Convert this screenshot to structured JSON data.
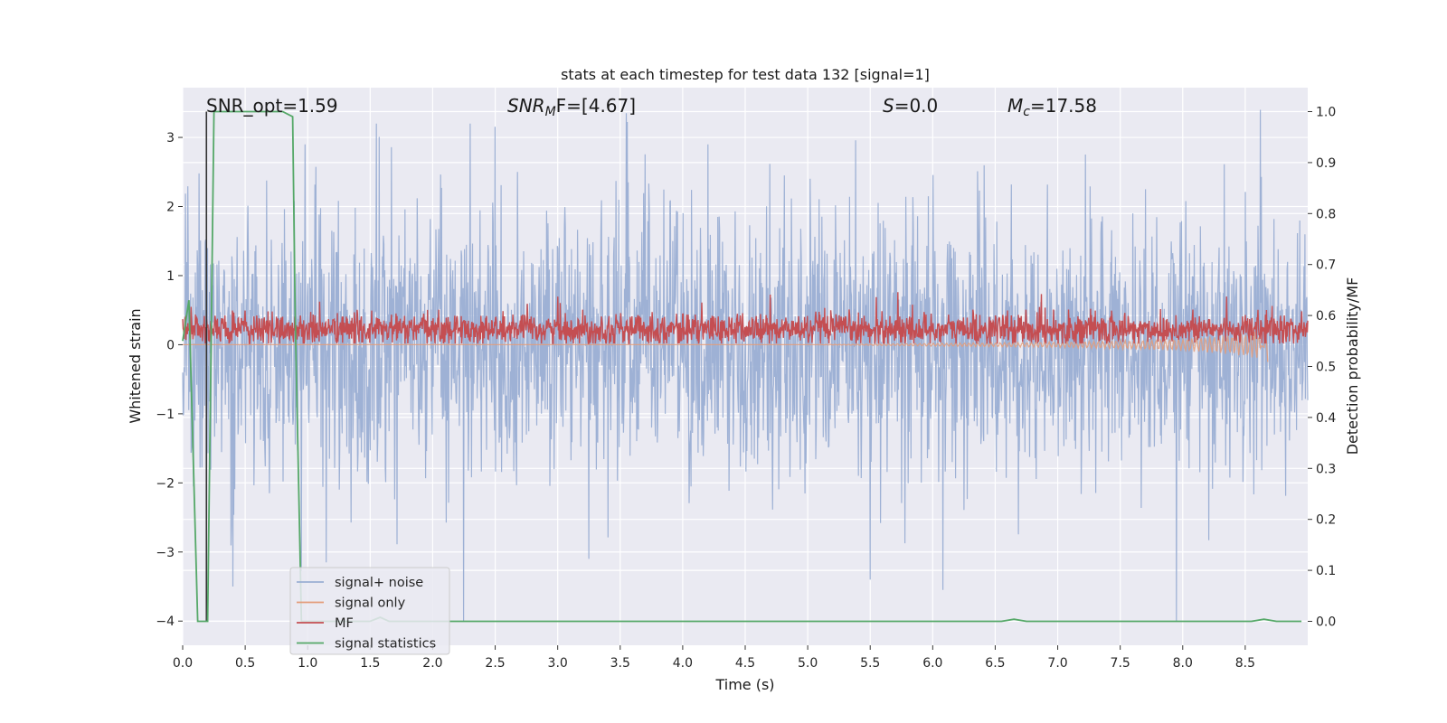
{
  "chart_data": {
    "type": "line",
    "title": "stats at each timestep for test data 132 [signal=1]",
    "xlabel": "Time (s)",
    "ylabel": "Whitened strain",
    "y2label": "Detection probability/MF",
    "xlim": [
      0.0,
      9.0
    ],
    "ylim": [
      -4.35,
      3.72
    ],
    "y2lim": [
      -0.047,
      1.047
    ],
    "grid": true,
    "legend_position": "lower-left",
    "x_ticks": [
      "0.0",
      "0.5",
      "1.0",
      "1.5",
      "2.0",
      "2.5",
      "3.0",
      "3.5",
      "4.0",
      "4.5",
      "5.0",
      "5.5",
      "6.0",
      "6.5",
      "7.0",
      "7.5",
      "8.0",
      "8.5"
    ],
    "y_ticks": [
      "3",
      "2",
      "1",
      "0",
      "−1",
      "−2",
      "−3",
      "−4"
    ],
    "y2_ticks": [
      "1.0",
      "0.9",
      "0.8",
      "0.7",
      "0.6",
      "0.5",
      "0.4",
      "0.3",
      "0.2",
      "0.1",
      "0.0"
    ],
    "annotations": {
      "snr_opt": "SNR_opt=1.59",
      "snr_mf_pre": "SNR",
      "snr_mf_sub": "M",
      "snr_mf_post": "F=[4.67]",
      "s_pre": "S",
      "s_post": "=0.0",
      "mc_pre": "M",
      "mc_sub": "c",
      "mc_post": "=17.58"
    },
    "series": [
      {
        "name": "signal+ noise",
        "color": "#9aaed3",
        "axis": "left",
        "description_values": "dense noise roughly within [-2.5, 2.5] with spikes to about ±3.3; extremes at 0.4 s (-3.5), 1.55 s (3.2), 2.3 s (3.2), 3.55 s (3.35), 5.5 s (-3.4), 6.08 s (-3.55), 7.95 s (-4.0), 8.62 s (3.4)",
        "spikes_x": [
          0.4,
          0.98,
          1.55,
          2.3,
          2.68,
          3.25,
          3.55,
          4.2,
          5.5,
          6.08,
          7.95,
          8.62
        ],
        "spikes_y": [
          -3.5,
          2.9,
          3.2,
          3.2,
          2.5,
          -3.1,
          3.35,
          2.9,
          -3.4,
          -3.55,
          -4.0,
          3.4
        ]
      },
      {
        "name": "signal only",
        "color": "#e39c7a",
        "axis": "left",
        "x": [
          0.0,
          1.0,
          2.0,
          3.0,
          4.0,
          5.0,
          5.5,
          6.0,
          6.5,
          7.0,
          7.5,
          8.0,
          8.4,
          8.6,
          8.68
        ],
        "y": [
          0.0,
          0.0,
          0.0,
          0.0,
          0.0,
          0.0,
          0.01,
          0.02,
          0.03,
          0.04,
          0.06,
          0.09,
          0.14,
          0.2,
          -0.25
        ]
      },
      {
        "name": "MF",
        "color": "#c44e52",
        "axis": "right",
        "description_values": "noisy band around 0.57 (range ~0.55-0.60) with peaks to ~0.65",
        "level": 0.573,
        "spread": 0.022,
        "peaks_x": [
          3.0,
          4.7,
          5.55,
          5.72,
          6.87,
          8.35
        ],
        "peaks_y": [
          0.637,
          0.641,
          0.636,
          0.646,
          0.642,
          0.637
        ]
      },
      {
        "name": "signal statistics",
        "color": "#55a868",
        "axis": "right",
        "x": [
          0.0,
          0.05,
          0.12,
          0.2,
          0.25,
          0.5,
          0.8,
          0.88,
          0.9,
          0.95,
          1.0,
          1.5,
          1.58,
          1.65,
          2.0,
          3.0,
          4.0,
          5.0,
          6.0,
          6.55,
          6.65,
          6.75,
          7.0,
          8.0,
          8.55,
          8.65,
          8.75,
          8.95
        ],
        "y": [
          0.55,
          0.63,
          0.0,
          0.0,
          1.0,
          1.0,
          1.0,
          0.99,
          0.6,
          0.0,
          0.0,
          0.0,
          0.008,
          0.0,
          0.0,
          0.0,
          0.0,
          0.0,
          0.0,
          0.0,
          0.004,
          0.0,
          0.0,
          0.0,
          0.0,
          0.004,
          0.0,
          0.0
        ]
      }
    ],
    "vertical_markers": [
      {
        "x": 0.19,
        "color": "#333333"
      }
    ]
  }
}
